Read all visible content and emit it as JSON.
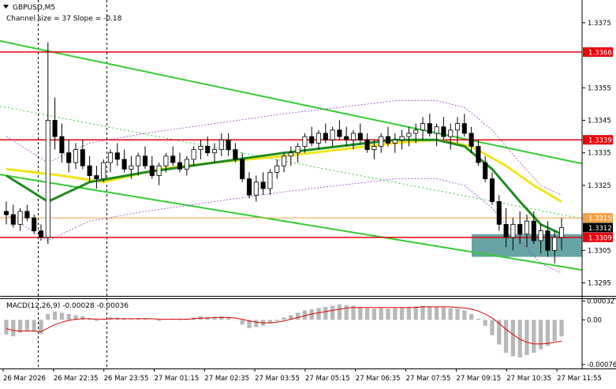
{
  "header": {
    "symbol_label": "GBPUSD,M5",
    "channel_label": "Channel size = 37 Slope = -0.18"
  },
  "macd": {
    "label": "MACD(12,26,9) -0.00028 -0.00036",
    "ticks": [
      "0.00032",
      "0.00",
      "-0.00076"
    ]
  },
  "price_axis": {
    "min": 1.3291,
    "max": 1.3382,
    "ticks": [
      "1.3375",
      "1.3355",
      "1.3345",
      "1.3335",
      "1.3325",
      "1.3305",
      "1.3295"
    ],
    "tick_values": [
      1.3375,
      1.3355,
      1.3345,
      1.3335,
      1.3325,
      1.3305,
      1.3295
    ]
  },
  "levels": [
    {
      "value": 1.3366,
      "label": "1.3366",
      "color": "#e8000b"
    },
    {
      "value": 1.3339,
      "label": "1.3339",
      "color": "#e8000b"
    },
    {
      "value": 1.3309,
      "label": "1.3309",
      "color": "#e8000b"
    },
    {
      "value": 1.3315,
      "label": "1.3315",
      "color": "#f5a142"
    }
  ],
  "current_price": {
    "value": 1.3312,
    "label": "1.3312"
  },
  "time_axis": {
    "labels": [
      "26 Mar 2026",
      "26 Mar 22:35",
      "26 Mar 23:55",
      "27 Mar 01:15",
      "27 Mar 02:35",
      "27 Mar 03:55",
      "27 Mar 05:15",
      "27 Mar 06:35",
      "27 Mar 07:55",
      "27 Mar 09:15",
      "27 Mar 10:35",
      "27 Mar 11:55"
    ]
  },
  "colors": {
    "bull_candle": "#ffffff",
    "bear_candle": "#000000",
    "channel": "#32cd32",
    "ma_fast": "#1e8c1e",
    "ma_slow": "#f2e41a",
    "bollinger": "#a040c8",
    "zone": "#4e9494",
    "macd_hist": "#b8b8b8",
    "macd_signal": "#e00000"
  },
  "chart_data": {
    "type": "candlestick",
    "symbol": "GBPUSD",
    "timeframe": "M5",
    "candles": [
      [
        1.3317,
        1.332,
        1.3313,
        1.3316
      ],
      [
        1.3316,
        1.3319,
        1.3312,
        1.3313
      ],
      [
        1.3313,
        1.3318,
        1.3311,
        1.3317
      ],
      [
        1.3317,
        1.3319,
        1.3314,
        1.3315
      ],
      [
        1.3315,
        1.3316,
        1.331,
        1.3311
      ],
      [
        1.3311,
        1.3313,
        1.3308,
        1.3309
      ],
      [
        1.3309,
        1.3369,
        1.3307,
        1.3345
      ],
      [
        1.3345,
        1.3352,
        1.3336,
        1.334
      ],
      [
        1.334,
        1.3344,
        1.3332,
        1.3335
      ],
      [
        1.3335,
        1.3339,
        1.3329,
        1.3332
      ],
      [
        1.3332,
        1.3338,
        1.333,
        1.3336
      ],
      [
        1.3336,
        1.3339,
        1.333,
        1.3331
      ],
      [
        1.3331,
        1.3334,
        1.3326,
        1.3328
      ],
      [
        1.3328,
        1.3331,
        1.3324,
        1.3327
      ],
      [
        1.3327,
        1.3333,
        1.3326,
        1.3332
      ],
      [
        1.3332,
        1.3336,
        1.3329,
        1.3335
      ],
      [
        1.3335,
        1.3338,
        1.3331,
        1.3333
      ],
      [
        1.3333,
        1.3336,
        1.3329,
        1.333
      ],
      [
        1.333,
        1.3334,
        1.3327,
        1.3331
      ],
      [
        1.3331,
        1.3335,
        1.3328,
        1.3334
      ],
      [
        1.3334,
        1.3337,
        1.333,
        1.3331
      ],
      [
        1.3331,
        1.3334,
        1.3327,
        1.3328
      ],
      [
        1.3328,
        1.3332,
        1.3325,
        1.3331
      ],
      [
        1.3331,
        1.3335,
        1.3329,
        1.3334
      ],
      [
        1.3334,
        1.3337,
        1.3331,
        1.3332
      ],
      [
        1.3332,
        1.3335,
        1.3329,
        1.333
      ],
      [
        1.333,
        1.3334,
        1.3328,
        1.3333
      ],
      [
        1.3333,
        1.3337,
        1.3331,
        1.3336
      ],
      [
        1.3336,
        1.3339,
        1.3333,
        1.3337
      ],
      [
        1.3337,
        1.334,
        1.3334,
        1.3335
      ],
      [
        1.3335,
        1.3338,
        1.3332,
        1.3336
      ],
      [
        1.3336,
        1.3341,
        1.3334,
        1.3339
      ],
      [
        1.3339,
        1.3341,
        1.3334,
        1.3336
      ],
      [
        1.3336,
        1.3338,
        1.3332,
        1.3333
      ],
      [
        1.3333,
        1.3335,
        1.3326,
        1.3327
      ],
      [
        1.3327,
        1.3329,
        1.3321,
        1.3322
      ],
      [
        1.3322,
        1.3328,
        1.332,
        1.3326
      ],
      [
        1.3326,
        1.3329,
        1.3322,
        1.3324
      ],
      [
        1.3324,
        1.333,
        1.3322,
        1.3329
      ],
      [
        1.3329,
        1.3333,
        1.3327,
        1.3331
      ],
      [
        1.3331,
        1.3335,
        1.3329,
        1.3334
      ],
      [
        1.3334,
        1.3337,
        1.3331,
        1.3335
      ],
      [
        1.3335,
        1.3338,
        1.3332,
        1.3337
      ],
      [
        1.3337,
        1.3341,
        1.3335,
        1.334
      ],
      [
        1.334,
        1.3343,
        1.3337,
        1.3338
      ],
      [
        1.3338,
        1.3342,
        1.3336,
        1.3341
      ],
      [
        1.3341,
        1.3344,
        1.3338,
        1.3339
      ],
      [
        1.3339,
        1.3343,
        1.3337,
        1.3342
      ],
      [
        1.3342,
        1.3345,
        1.3339,
        1.334
      ],
      [
        1.334,
        1.3343,
        1.3337,
        1.3339
      ],
      [
        1.3339,
        1.3342,
        1.3336,
        1.3341
      ],
      [
        1.3341,
        1.3344,
        1.3338,
        1.3339
      ],
      [
        1.3339,
        1.3341,
        1.3335,
        1.3336
      ],
      [
        1.3336,
        1.3339,
        1.3333,
        1.3337
      ],
      [
        1.3337,
        1.3341,
        1.3335,
        1.334
      ],
      [
        1.334,
        1.3343,
        1.3337,
        1.3338
      ],
      [
        1.3338,
        1.3341,
        1.3335,
        1.3339
      ],
      [
        1.3339,
        1.3342,
        1.3336,
        1.334
      ],
      [
        1.334,
        1.3343,
        1.3337,
        1.3341
      ],
      [
        1.3341,
        1.3344,
        1.3338,
        1.3342
      ],
      [
        1.3342,
        1.3346,
        1.3339,
        1.3344
      ],
      [
        1.3344,
        1.3347,
        1.334,
        1.3341
      ],
      [
        1.3341,
        1.3344,
        1.3337,
        1.3343
      ],
      [
        1.3343,
        1.3346,
        1.3339,
        1.334
      ],
      [
        1.334,
        1.3344,
        1.3336,
        1.3342
      ],
      [
        1.3342,
        1.3346,
        1.3338,
        1.3344
      ],
      [
        1.3344,
        1.3347,
        1.334,
        1.3341
      ],
      [
        1.3341,
        1.3343,
        1.3335,
        1.3337
      ],
      [
        1.3337,
        1.3339,
        1.3331,
        1.3332
      ],
      [
        1.3332,
        1.3334,
        1.3326,
        1.3327
      ],
      [
        1.3327,
        1.3329,
        1.3319,
        1.332
      ],
      [
        1.332,
        1.3322,
        1.3311,
        1.3313
      ],
      [
        1.3313,
        1.3318,
        1.3306,
        1.3309
      ],
      [
        1.3309,
        1.3315,
        1.3305,
        1.3313
      ],
      [
        1.3313,
        1.3317,
        1.3307,
        1.331
      ],
      [
        1.331,
        1.3316,
        1.3306,
        1.3314
      ],
      [
        1.3314,
        1.3317,
        1.3307,
        1.3308
      ],
      [
        1.3308,
        1.3313,
        1.3304,
        1.3311
      ],
      [
        1.3311,
        1.3314,
        1.3303,
        1.3305
      ],
      [
        1.3305,
        1.3311,
        1.3301,
        1.3309
      ],
      [
        1.3309,
        1.3315,
        1.3305,
        1.3312
      ]
    ],
    "channel_upper": [
      [
        0,
        1.3369
      ],
      [
        80,
        1.3333
      ]
    ],
    "channel_lower": [
      [
        0,
        1.3328
      ],
      [
        80,
        1.33
      ]
    ],
    "channel_mid": [
      [
        0,
        1.3349
      ],
      [
        80,
        1.3316
      ]
    ],
    "ma_fast": [
      [
        0,
        1.3328
      ],
      [
        6,
        1.332
      ],
      [
        12,
        1.3326
      ],
      [
        20,
        1.3329
      ],
      [
        30,
        1.3332
      ],
      [
        40,
        1.3335
      ],
      [
        48,
        1.3337
      ],
      [
        56,
        1.3339
      ],
      [
        62,
        1.3339
      ],
      [
        66,
        1.3337
      ],
      [
        70,
        1.333
      ],
      [
        74,
        1.332
      ],
      [
        77,
        1.3313
      ],
      [
        80,
        1.331
      ]
    ],
    "ma_slow": [
      [
        0,
        1.333
      ],
      [
        8,
        1.3328
      ],
      [
        14,
        1.3326
      ],
      [
        22,
        1.333
      ],
      [
        30,
        1.3332
      ],
      [
        40,
        1.3334
      ],
      [
        48,
        1.3336
      ],
      [
        56,
        1.3338
      ],
      [
        62,
        1.3339
      ],
      [
        67,
        1.3337
      ],
      [
        72,
        1.3331
      ],
      [
        76,
        1.3325
      ],
      [
        80,
        1.332
      ]
    ],
    "macd_hist": [
      -0.00025,
      -0.00028,
      -0.00022,
      -0.00018,
      -0.0002,
      -0.00024,
      0.0001,
      0.00014,
      0.00012,
      0.0001,
      8e-05,
      6e-05,
      2e-05,
      -2e-05,
      2e-05,
      4e-05,
      4e-05,
      2e-05,
      1e-05,
      3e-05,
      3e-05,
      0.0,
      -2e-05,
      1e-05,
      2e-05,
      0.0,
      2e-05,
      4e-05,
      6e-05,
      5e-05,
      5e-05,
      6e-05,
      4e-05,
      0.0,
      -8e-05,
      -0.00014,
      -0.00012,
      -0.0001,
      -6e-05,
      -2e-05,
      4e-05,
      8e-05,
      0.00012,
      0.00016,
      0.00018,
      0.0002,
      0.00022,
      0.00024,
      0.00026,
      0.00025,
      0.00024,
      0.00022,
      0.0002,
      0.00019,
      0.0002,
      0.00019,
      0.0002,
      0.00021,
      0.00022,
      0.00023,
      0.00024,
      0.00023,
      0.00022,
      0.00021,
      0.0002,
      0.00019,
      0.00016,
      0.0001,
      2e-05,
      -0.0001,
      -0.00026,
      -0.00042,
      -0.00056,
      -0.00062,
      -0.00064,
      -0.0006,
      -0.00056,
      -0.0005,
      -0.00044,
      -0.00036,
      -0.00028
    ],
    "macd_signal": [
      -0.00015,
      -0.00018,
      -0.00019,
      -0.00019,
      -0.00019,
      -0.0002,
      -0.00014,
      -8e-05,
      -4e-05,
      -1e-05,
      1e-05,
      2e-05,
      2e-05,
      1e-05,
      1e-05,
      2e-05,
      2e-05,
      2e-05,
      2e-05,
      2e-05,
      2e-05,
      2e-05,
      1e-05,
      1e-05,
      1e-05,
      1e-05,
      1e-05,
      2e-05,
      3e-05,
      3e-05,
      4e-05,
      4e-05,
      4e-05,
      3e-05,
      1e-05,
      -2e-05,
      -4e-05,
      -5e-05,
      -5e-05,
      -4e-05,
      -2e-05,
      1e-05,
      4e-05,
      7e-05,
      0.0001,
      0.00012,
      0.00014,
      0.00016,
      0.00018,
      0.0002,
      0.00021,
      0.00021,
      0.00021,
      0.00021,
      0.00021,
      0.00021,
      0.00021,
      0.00021,
      0.00021,
      0.00021,
      0.00022,
      0.00022,
      0.00022,
      0.00022,
      0.00022,
      0.00021,
      0.0002,
      0.00018,
      0.00015,
      0.0001,
      3e-05,
      -6e-05,
      -0.00016,
      -0.00025,
      -0.00033,
      -0.00038,
      -0.00041,
      -0.00041,
      -0.0004,
      -0.00038,
      -0.00036
    ],
    "macd_range": [
      -0.0008,
      0.00034
    ]
  }
}
